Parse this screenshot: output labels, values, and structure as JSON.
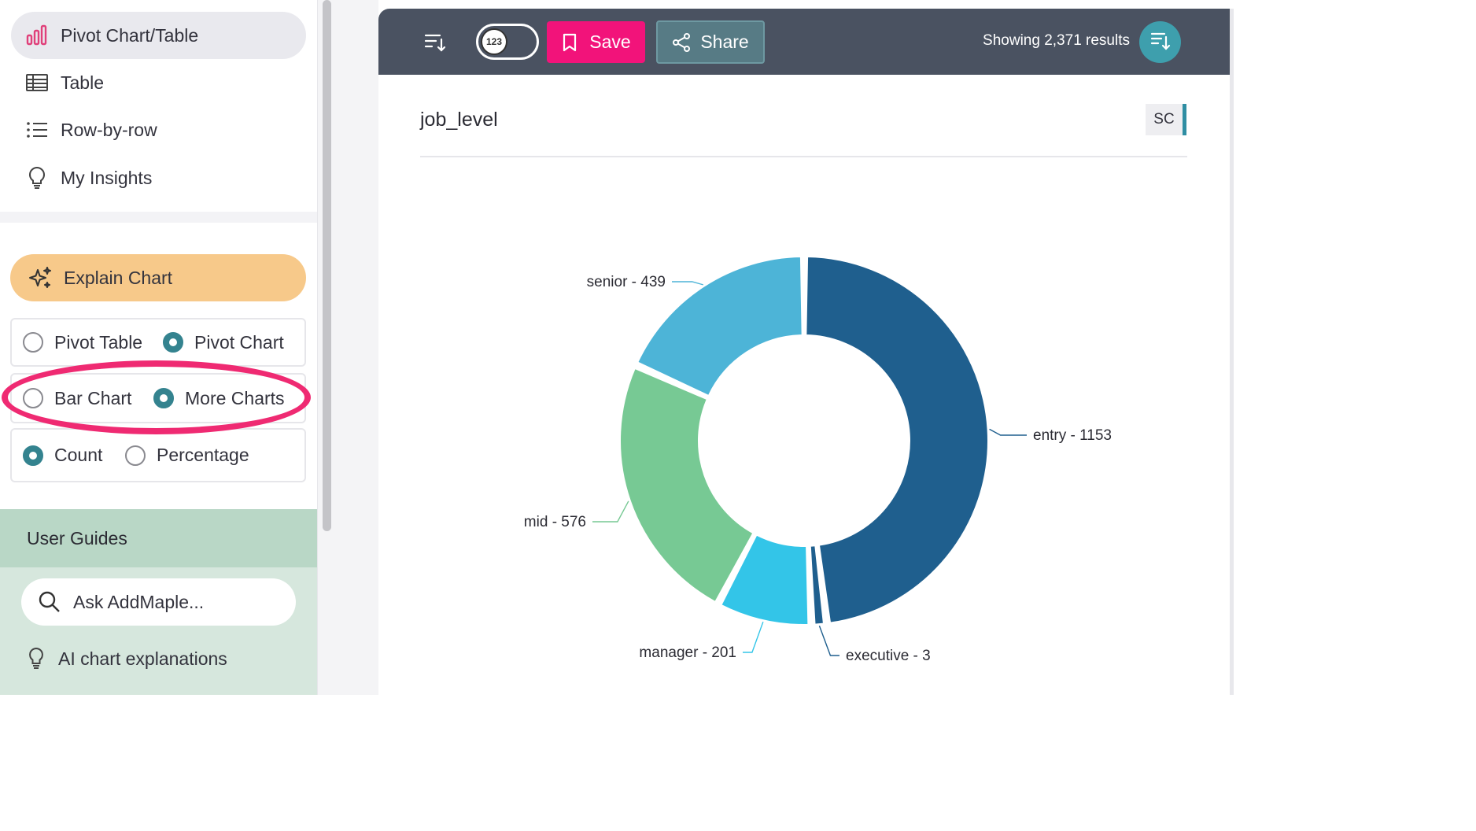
{
  "sidebar": {
    "nav": [
      {
        "label": "Pivot Chart/Table",
        "active": true,
        "icon": "bar-chart-icon"
      },
      {
        "label": "Table",
        "active": false,
        "icon": "table-icon"
      },
      {
        "label": "Row-by-row",
        "active": false,
        "icon": "list-icon"
      },
      {
        "label": "My Insights",
        "active": false,
        "icon": "lightbulb-icon"
      }
    ],
    "explain_label": "Explain Chart",
    "view_options": {
      "pivot_table": "Pivot Table",
      "pivot_chart": "Pivot Chart",
      "selected": "Pivot Chart"
    },
    "chart_options": {
      "bar_chart": "Bar Chart",
      "more_charts": "More Charts",
      "selected": "More Charts"
    },
    "value_options": {
      "count": "Count",
      "percentage": "Percentage",
      "selected": "Count"
    },
    "guides": {
      "title": "User Guides",
      "search_placeholder": "Ask AddMaple...",
      "ai_link": "AI chart explanations"
    }
  },
  "toolbar": {
    "toggle_label": "123",
    "save_label": "Save",
    "share_label": "Share",
    "results_text": "Showing 2,371 results"
  },
  "chart_panel": {
    "title": "job_level",
    "badge": "SC"
  },
  "colors": {
    "entry": "#1f5f8e",
    "executive": "#1f5f8e",
    "manager": "#33c5e8",
    "mid": "#77c994",
    "senior": "#4db4d7",
    "save": "#f2137a",
    "highlight": "#ef2a72"
  },
  "chart_data": {
    "type": "pie",
    "title": "job_level",
    "categories": [
      "entry",
      "executive",
      "manager",
      "mid",
      "senior"
    ],
    "values": [
      1153,
      3,
      201,
      576,
      439
    ],
    "labels": [
      "entry - 1153",
      "executive - 3",
      "manager - 201",
      "mid - 576",
      "senior - 439"
    ]
  }
}
